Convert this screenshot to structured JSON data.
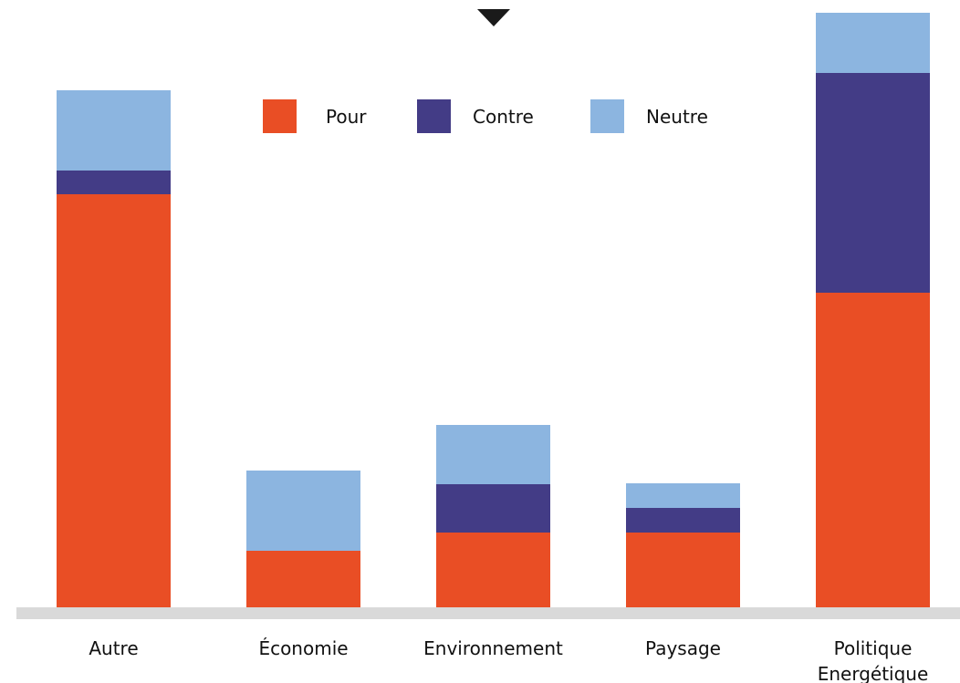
{
  "chart_data": {
    "type": "bar",
    "stacked": true,
    "categories": [
      "Autre",
      "Économie",
      "Environnement",
      "Paysage",
      "Politique Energétique"
    ],
    "category_lines": [
      [
        "Autre"
      ],
      [
        "Économie"
      ],
      [
        "Environnement"
      ],
      [
        "Paysage"
      ],
      [
        "Politique",
        "Energétique"
      ]
    ],
    "series": [
      {
        "name": "Pour",
        "color": "#e94e25",
        "values": [
          453,
          62,
          82,
          82,
          345
        ]
      },
      {
        "name": "Contre",
        "color": "#433c86",
        "values": [
          26,
          0,
          53,
          27,
          241
        ]
      },
      {
        "name": "Neutre",
        "color": "#8cb5e0",
        "values": [
          88,
          88,
          65,
          27,
          66
        ]
      }
    ],
    "ylim": [
      0,
      652
    ],
    "grid": false,
    "legend_position": "top-center",
    "axis_color": "#d9d9d9",
    "marker": {
      "shape": "down-triangle",
      "color": "#1a1a1a",
      "icon": "triangle-down-icon"
    }
  }
}
